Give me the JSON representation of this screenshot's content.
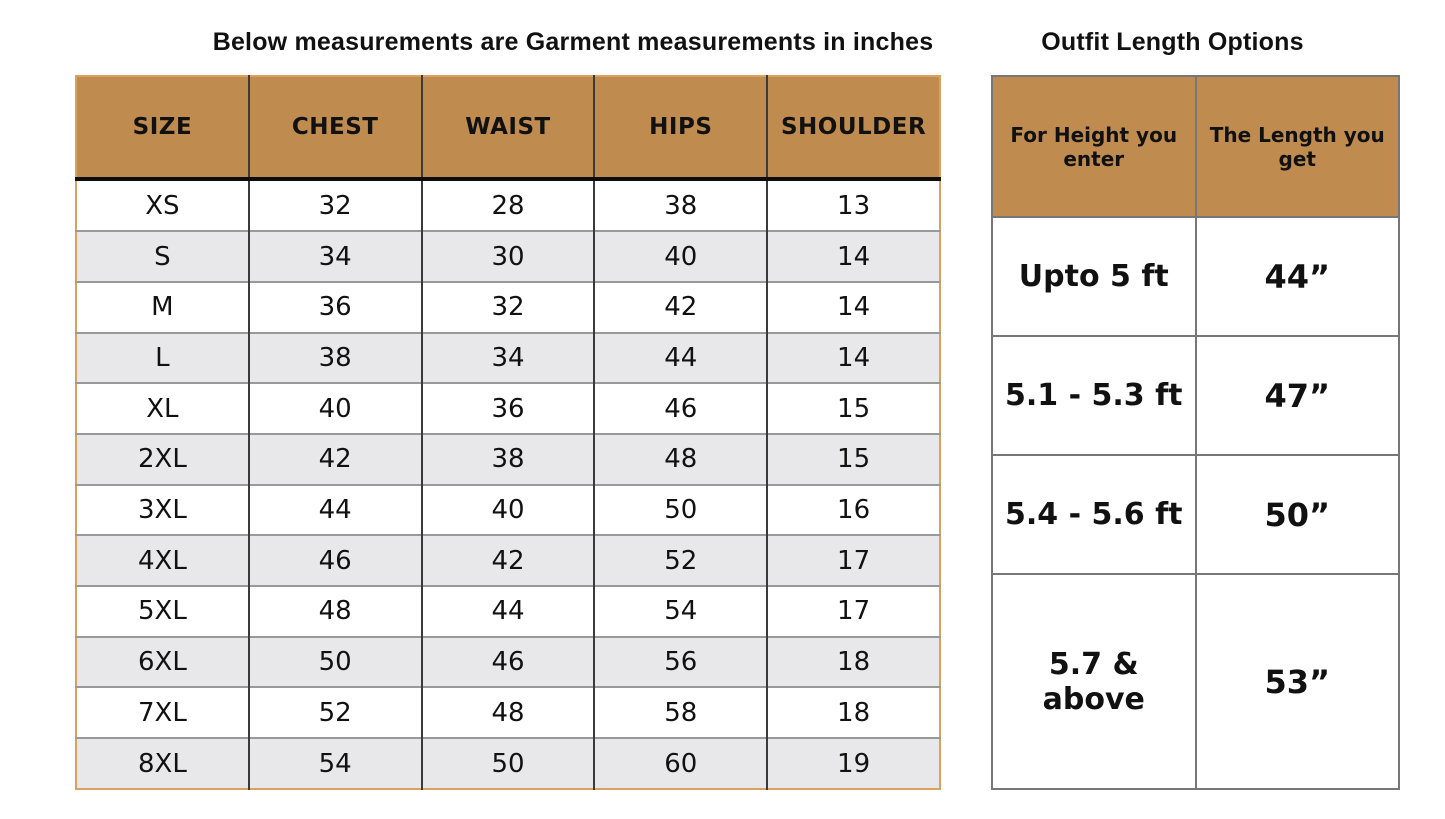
{
  "page": {
    "background": "#FFFFFF"
  },
  "colors": {
    "header_fill": "#BF8B4F",
    "row_alt_fill": "#E8E8EA",
    "left_table_border": "#D9A35F",
    "grid_line": "#999999",
    "column_line": "#3A3A3A",
    "header_underline": "#0D0D0D",
    "right_table_border": "#777777",
    "text": "#111111"
  },
  "chart_data": [
    {
      "type": "table",
      "title": "Below measurements are Garment measurements in inches",
      "columns": [
        "SIZE",
        "CHEST",
        "WAIST",
        "HIPS",
        "SHOULDER"
      ],
      "rows": [
        [
          "XS",
          32,
          28,
          38,
          13
        ],
        [
          "S",
          34,
          30,
          40,
          14
        ],
        [
          "M",
          36,
          32,
          42,
          14
        ],
        [
          "L",
          38,
          34,
          44,
          14
        ],
        [
          "XL",
          40,
          36,
          46,
          15
        ],
        [
          "2XL",
          42,
          38,
          48,
          15
        ],
        [
          "3XL",
          44,
          40,
          50,
          16
        ],
        [
          "4XL",
          46,
          42,
          52,
          17
        ],
        [
          "5XL",
          48,
          44,
          54,
          17
        ],
        [
          "6XL",
          50,
          46,
          56,
          18
        ],
        [
          "7XL",
          52,
          48,
          58,
          18
        ],
        [
          "8XL",
          54,
          50,
          60,
          19
        ]
      ]
    },
    {
      "type": "table",
      "title": "Outfit Length Options",
      "columns": [
        "For Height you enter",
        "The Length you get"
      ],
      "rows": [
        [
          "Upto 5 ft",
          "44”"
        ],
        [
          "5.1 - 5.3 ft",
          "47”"
        ],
        [
          "5.4 - 5.6 ft",
          "50”"
        ],
        [
          "5.7 & above",
          "53”"
        ]
      ]
    }
  ]
}
